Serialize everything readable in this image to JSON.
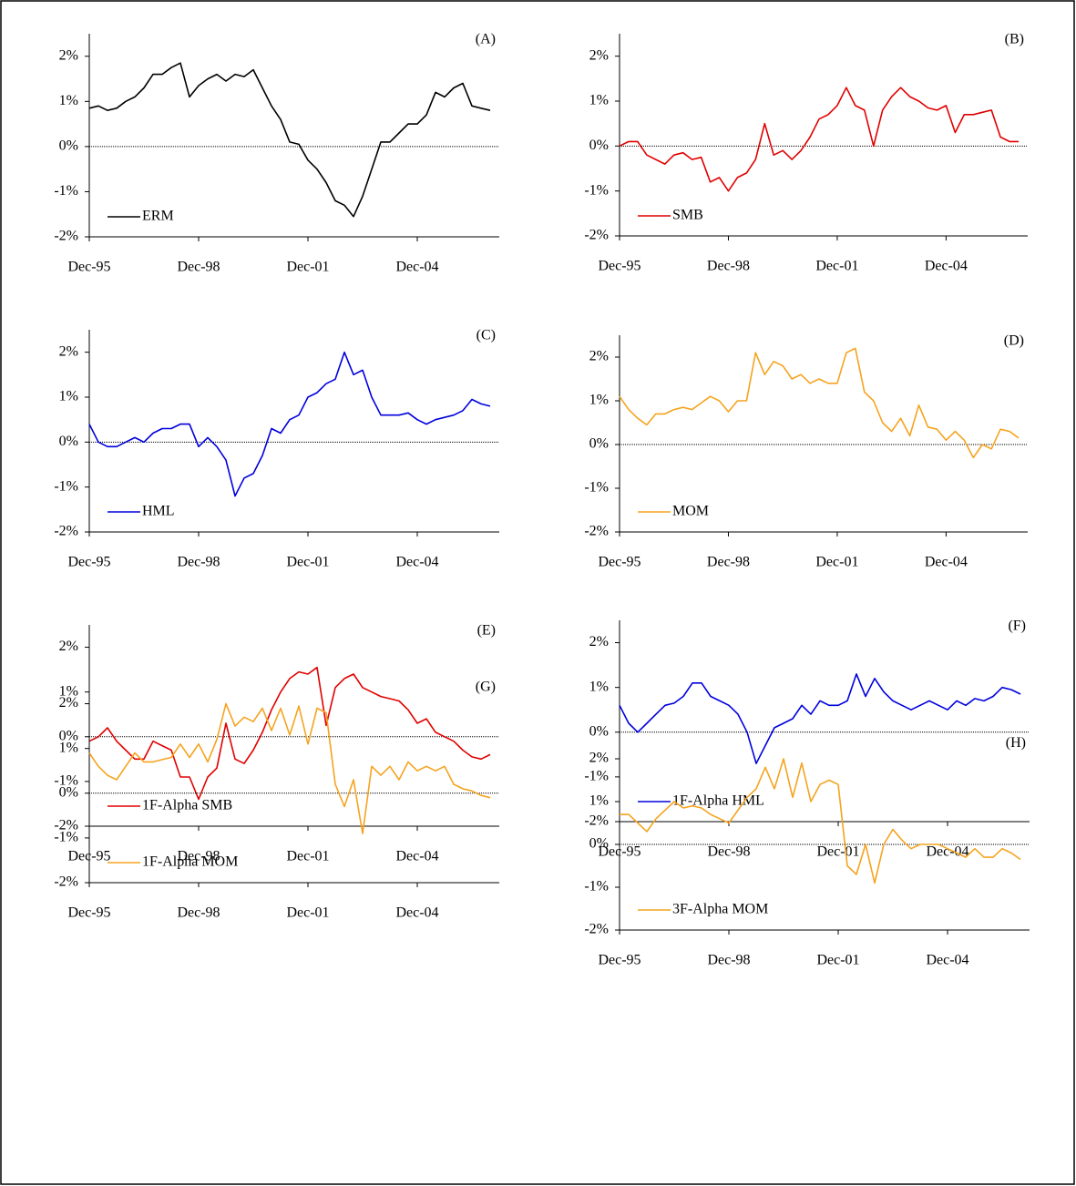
{
  "chart_data": [
    {
      "type": "line",
      "title": "(A)",
      "legend": "lower left",
      "ylim": [
        -2,
        2.5
      ],
      "yticks": [
        {
          "value": -2,
          "label": "-2%"
        },
        {
          "value": -1,
          "label": "-1%"
        },
        {
          "value": 0,
          "label": "0%"
        },
        {
          "value": 1,
          "label": "1%"
        },
        {
          "value": 2,
          "label": "2%"
        }
      ],
      "xticks": [
        "Dec-95",
        "Dec-98",
        "Dec-01",
        "Dec-04"
      ],
      "x": [
        "Dec-95",
        "Mar-96",
        "Jun-96",
        "Sep-96",
        "Dec-96",
        "Mar-97",
        "Jun-97",
        "Sep-97",
        "Dec-97",
        "Mar-98",
        "Jun-98",
        "Sep-98",
        "Dec-98",
        "Mar-99",
        "Jun-99",
        "Sep-99",
        "Dec-99",
        "Mar-00",
        "Jun-00",
        "Sep-00",
        "Dec-00",
        "Mar-01",
        "Jun-01",
        "Sep-01",
        "Dec-01",
        "Mar-02",
        "Jun-02",
        "Sep-02",
        "Dec-02",
        "Mar-03",
        "Jun-03",
        "Sep-03",
        "Dec-03",
        "Mar-04",
        "Jun-04",
        "Sep-04",
        "Dec-04",
        "Mar-05",
        "Jun-05",
        "Sep-05",
        "Dec-05",
        "Mar-06",
        "Jun-06",
        "Sep-06",
        "Dec-06"
      ],
      "series": [
        {
          "name": "ERM",
          "color": "#000000",
          "values": [
            0.85,
            0.9,
            0.8,
            0.85,
            1.0,
            1.1,
            1.3,
            1.6,
            1.6,
            1.75,
            1.85,
            1.1,
            1.35,
            1.5,
            1.6,
            1.45,
            1.6,
            1.55,
            1.7,
            1.3,
            0.9,
            0.6,
            0.1,
            0.05,
            -0.3,
            -0.5,
            -0.8,
            -1.2,
            -1.3,
            -1.55,
            -1.1,
            -0.5,
            0.1,
            0.1,
            0.3,
            0.5,
            0.5,
            0.7,
            1.2,
            1.1,
            1.3,
            1.4,
            0.9,
            0.85,
            0.8
          ]
        }
      ]
    },
    {
      "type": "line",
      "title": "(B)",
      "legend": "lower left",
      "ylim": [
        -2,
        2.5
      ],
      "yticks": [
        {
          "value": -2,
          "label": "-2%"
        },
        {
          "value": -1,
          "label": "-1%"
        },
        {
          "value": 0,
          "label": "0%"
        },
        {
          "value": 1,
          "label": "1%"
        },
        {
          "value": 2,
          "label": "2%"
        }
      ],
      "xticks": [
        "Dec-95",
        "Dec-98",
        "Dec-01",
        "Dec-04"
      ],
      "x": [
        "Dec-95",
        "Mar-96",
        "Jun-96",
        "Sep-96",
        "Dec-96",
        "Mar-97",
        "Jun-97",
        "Sep-97",
        "Dec-97",
        "Mar-98",
        "Jun-98",
        "Sep-98",
        "Dec-98",
        "Mar-99",
        "Jun-99",
        "Sep-99",
        "Dec-99",
        "Mar-00",
        "Jun-00",
        "Sep-00",
        "Dec-00",
        "Mar-01",
        "Jun-01",
        "Sep-01",
        "Dec-01",
        "Mar-02",
        "Jun-02",
        "Sep-02",
        "Dec-02",
        "Mar-03",
        "Jun-03",
        "Sep-03",
        "Dec-03",
        "Mar-04",
        "Jun-04",
        "Sep-04",
        "Dec-04",
        "Mar-05",
        "Jun-05",
        "Sep-05",
        "Dec-05",
        "Mar-06",
        "Jun-06",
        "Sep-06",
        "Dec-06"
      ],
      "series": [
        {
          "name": "SMB",
          "color": "#e00000",
          "values": [
            0.0,
            0.1,
            0.1,
            -0.2,
            -0.3,
            -0.4,
            -0.2,
            -0.15,
            -0.3,
            -0.25,
            -0.8,
            -0.7,
            -1.0,
            -0.7,
            -0.6,
            -0.3,
            0.5,
            -0.2,
            -0.1,
            -0.3,
            -0.1,
            0.2,
            0.6,
            0.7,
            0.9,
            1.3,
            0.9,
            0.8,
            0.0,
            0.8,
            1.1,
            1.3,
            1.1,
            1.0,
            0.85,
            0.8,
            0.9,
            0.3,
            0.7,
            0.7,
            0.75,
            0.8,
            0.2,
            0.1,
            0.1
          ]
        }
      ]
    },
    {
      "type": "line",
      "title": "(C)",
      "legend": "lower left",
      "ylim": [
        -2,
        2.5
      ],
      "yticks": [
        {
          "value": -2,
          "label": "-2%"
        },
        {
          "value": -1,
          "label": "-1%"
        },
        {
          "value": 0,
          "label": "0%"
        },
        {
          "value": 1,
          "label": "1%"
        },
        {
          "value": 2,
          "label": "2%"
        }
      ],
      "xticks": [
        "Dec-95",
        "Dec-98",
        "Dec-01",
        "Dec-04"
      ],
      "x": [
        "Dec-95",
        "Mar-96",
        "Jun-96",
        "Sep-96",
        "Dec-96",
        "Mar-97",
        "Jun-97",
        "Sep-97",
        "Dec-97",
        "Mar-98",
        "Jun-98",
        "Sep-98",
        "Dec-98",
        "Mar-99",
        "Jun-99",
        "Sep-99",
        "Dec-99",
        "Mar-00",
        "Jun-00",
        "Sep-00",
        "Dec-00",
        "Mar-01",
        "Jun-01",
        "Sep-01",
        "Dec-01",
        "Mar-02",
        "Jun-02",
        "Sep-02",
        "Dec-02",
        "Mar-03",
        "Jun-03",
        "Sep-03",
        "Dec-03",
        "Mar-04",
        "Jun-04",
        "Sep-04",
        "Dec-04",
        "Mar-05",
        "Jun-05",
        "Sep-05",
        "Dec-05",
        "Mar-06",
        "Jun-06",
        "Sep-06",
        "Dec-06"
      ],
      "series": [
        {
          "name": "HML",
          "color": "#0000dd",
          "values": [
            0.4,
            0.0,
            -0.1,
            -0.1,
            0.0,
            0.1,
            0.0,
            0.2,
            0.3,
            0.3,
            0.4,
            0.4,
            -0.1,
            0.1,
            -0.1,
            -0.4,
            -1.2,
            -0.8,
            -0.7,
            -0.3,
            0.3,
            0.2,
            0.5,
            0.6,
            1.0,
            1.1,
            1.3,
            1.4,
            2.0,
            1.5,
            1.6,
            1.0,
            0.6,
            0.6,
            0.6,
            0.65,
            0.5,
            0.4,
            0.5,
            0.55,
            0.6,
            0.7,
            0.95,
            0.85,
            0.8
          ]
        }
      ]
    },
    {
      "type": "line",
      "title": "(D)",
      "legend": "lower left",
      "ylim": [
        -2,
        2.5
      ],
      "yticks": [
        {
          "value": -2,
          "label": "-2%"
        },
        {
          "value": -1,
          "label": "-1%"
        },
        {
          "value": 0,
          "label": "0%"
        },
        {
          "value": 1,
          "label": "1%"
        },
        {
          "value": 2,
          "label": "2%"
        }
      ],
      "xticks": [
        "Dec-95",
        "Dec-98",
        "Dec-01",
        "Dec-04"
      ],
      "x": [
        "Dec-95",
        "Mar-96",
        "Jun-96",
        "Sep-96",
        "Dec-96",
        "Mar-97",
        "Jun-97",
        "Sep-97",
        "Dec-97",
        "Mar-98",
        "Jun-98",
        "Sep-98",
        "Dec-98",
        "Mar-99",
        "Jun-99",
        "Sep-99",
        "Dec-99",
        "Mar-00",
        "Jun-00",
        "Sep-00",
        "Dec-00",
        "Mar-01",
        "Jun-01",
        "Sep-01",
        "Dec-01",
        "Mar-02",
        "Jun-02",
        "Sep-02",
        "Dec-02",
        "Mar-03",
        "Jun-03",
        "Sep-03",
        "Dec-03",
        "Mar-04",
        "Jun-04",
        "Sep-04",
        "Dec-04",
        "Mar-05",
        "Jun-05",
        "Sep-05",
        "Dec-05",
        "Mar-06",
        "Jun-06",
        "Sep-06",
        "Dec-06"
      ],
      "series": [
        {
          "name": "MOM",
          "color": "#f5a31f",
          "values": [
            1.1,
            0.8,
            0.6,
            0.45,
            0.7,
            0.7,
            0.8,
            0.85,
            0.8,
            0.95,
            1.1,
            1.0,
            0.75,
            1.0,
            1.0,
            2.1,
            1.6,
            1.9,
            1.8,
            1.5,
            1.6,
            1.4,
            1.5,
            1.4,
            1.4,
            2.1,
            2.2,
            1.2,
            1.0,
            0.5,
            0.3,
            0.6,
            0.2,
            0.9,
            0.4,
            0.35,
            0.1,
            0.3,
            0.1,
            -0.3,
            0.0,
            -0.1,
            0.35,
            0.3,
            0.15
          ]
        }
      ]
    },
    {
      "type": "line",
      "title": "(E)",
      "legend": "lower left",
      "ylim": [
        -2,
        2.5
      ],
      "yticks": [
        {
          "value": -2,
          "label": "-2%"
        },
        {
          "value": -1,
          "label": "-1%"
        },
        {
          "value": 0,
          "label": "0%"
        },
        {
          "value": 1,
          "label": "1%"
        },
        {
          "value": 2,
          "label": "2%"
        }
      ],
      "xticks": [
        "Dec-95",
        "Dec-98",
        "Dec-01",
        "Dec-04"
      ],
      "x": [
        "Dec-95",
        "Mar-96",
        "Jun-96",
        "Sep-96",
        "Dec-96",
        "Mar-97",
        "Jun-97",
        "Sep-97",
        "Dec-97",
        "Mar-98",
        "Jun-98",
        "Sep-98",
        "Dec-98",
        "Mar-99",
        "Jun-99",
        "Sep-99",
        "Dec-99",
        "Mar-00",
        "Jun-00",
        "Sep-00",
        "Dec-00",
        "Mar-01",
        "Jun-01",
        "Sep-01",
        "Dec-01",
        "Mar-02",
        "Jun-02",
        "Sep-02",
        "Dec-02",
        "Mar-03",
        "Jun-03",
        "Sep-03",
        "Dec-03",
        "Mar-04",
        "Jun-04",
        "Sep-04",
        "Dec-04",
        "Mar-05",
        "Jun-05",
        "Sep-05",
        "Dec-05",
        "Mar-06",
        "Jun-06",
        "Sep-06",
        "Dec-06"
      ],
      "series": [
        {
          "name": "1F-Alpha SMB",
          "color": "#e00000",
          "values": [
            -0.1,
            0.0,
            0.2,
            -0.1,
            -0.3,
            -0.5,
            -0.5,
            -0.1,
            -0.2,
            -0.3,
            -0.9,
            -0.9,
            -1.4,
            -0.9,
            -0.7,
            0.3,
            -0.5,
            -0.6,
            -0.3,
            0.1,
            0.6,
            1.0,
            1.3,
            1.45,
            1.4,
            1.55,
            0.25,
            1.1,
            1.3,
            1.4,
            1.1,
            1.0,
            0.9,
            0.85,
            0.8,
            0.6,
            0.3,
            0.4,
            0.1,
            0.0,
            -0.1,
            -0.3,
            -0.45,
            -0.5,
            -0.4
          ]
        }
      ]
    },
    {
      "type": "line",
      "title": "(F)",
      "legend": "lower left",
      "ylim": [
        -2,
        2.5
      ],
      "yticks": [
        {
          "value": -2,
          "label": "-2%"
        },
        {
          "value": -1,
          "label": "-1%"
        },
        {
          "value": 0,
          "label": "0%"
        },
        {
          "value": 1,
          "label": "1%"
        },
        {
          "value": 2,
          "label": "2%"
        }
      ],
      "xticks": [
        "Dec-95",
        "Dec-98",
        "Dec-01",
        "Dec-04"
      ],
      "x": [
        "Dec-95",
        "Mar-96",
        "Jun-96",
        "Sep-96",
        "Dec-96",
        "Mar-97",
        "Jun-97",
        "Sep-97",
        "Dec-97",
        "Mar-98",
        "Jun-98",
        "Sep-98",
        "Dec-98",
        "Mar-99",
        "Jun-99",
        "Sep-99",
        "Dec-99",
        "Mar-00",
        "Jun-00",
        "Sep-00",
        "Dec-00",
        "Mar-01",
        "Jun-01",
        "Sep-01",
        "Dec-01",
        "Mar-02",
        "Jun-02",
        "Sep-02",
        "Dec-02",
        "Mar-03",
        "Jun-03",
        "Sep-03",
        "Dec-03",
        "Mar-04",
        "Jun-04",
        "Sep-04",
        "Dec-04",
        "Mar-05",
        "Jun-05",
        "Sep-05",
        "Dec-05",
        "Mar-06",
        "Jun-06",
        "Sep-06",
        "Dec-06"
      ],
      "series": [
        {
          "name": "1F-Alpha HML",
          "color": "#0000dd",
          "values": [
            0.6,
            0.2,
            0.0,
            0.2,
            0.4,
            0.6,
            0.65,
            0.8,
            1.1,
            1.1,
            0.8,
            0.7,
            0.6,
            0.4,
            0.0,
            -0.7,
            -0.3,
            0.1,
            0.2,
            0.3,
            0.6,
            0.4,
            0.7,
            0.6,
            0.6,
            0.7,
            1.3,
            0.8,
            1.2,
            0.9,
            0.7,
            0.6,
            0.5,
            0.6,
            0.7,
            0.6,
            0.5,
            0.7,
            0.6,
            0.75,
            0.7,
            0.8,
            1.0,
            0.95,
            0.85
          ]
        }
      ]
    },
    {
      "type": "line",
      "title": "(G)",
      "legend": "lower left",
      "ylim": [
        -2,
        2.5
      ],
      "yticks": [
        {
          "value": -2,
          "label": "-2%"
        },
        {
          "value": -1,
          "label": "-1%"
        },
        {
          "value": 0,
          "label": "0%"
        },
        {
          "value": 1,
          "label": "1%"
        },
        {
          "value": 2,
          "label": "2%"
        }
      ],
      "xticks": [
        "Dec-95",
        "Dec-98",
        "Dec-01",
        "Dec-04"
      ],
      "x": [
        "Dec-95",
        "Mar-96",
        "Jun-96",
        "Sep-96",
        "Dec-96",
        "Mar-97",
        "Jun-97",
        "Sep-97",
        "Dec-97",
        "Mar-98",
        "Jun-98",
        "Sep-98",
        "Dec-98",
        "Mar-99",
        "Jun-99",
        "Sep-99",
        "Dec-99",
        "Mar-00",
        "Jun-00",
        "Sep-00",
        "Dec-00",
        "Mar-01",
        "Jun-01",
        "Sep-01",
        "Dec-01",
        "Mar-02",
        "Jun-02",
        "Sep-02",
        "Dec-02",
        "Mar-03",
        "Jun-03",
        "Sep-03",
        "Dec-03",
        "Mar-04",
        "Jun-04",
        "Sep-04",
        "Dec-04",
        "Mar-05",
        "Jun-05",
        "Sep-05",
        "Dec-05",
        "Mar-06",
        "Jun-06",
        "Sep-06",
        "Dec-06"
      ],
      "series": [
        {
          "name": "1F-Alpha MOM",
          "color": "#f5a31f",
          "values": [
            0.9,
            0.6,
            0.4,
            0.3,
            0.6,
            0.9,
            0.7,
            0.7,
            0.75,
            0.8,
            1.1,
            0.8,
            1.1,
            0.7,
            1.2,
            2.0,
            1.5,
            1.7,
            1.6,
            1.9,
            1.4,
            1.9,
            1.3,
            1.95,
            1.1,
            1.9,
            1.8,
            0.2,
            -0.3,
            0.3,
            -0.9,
            0.6,
            0.4,
            0.6,
            0.3,
            0.7,
            0.5,
            0.6,
            0.5,
            0.6,
            0.2,
            0.1,
            0.05,
            -0.05,
            -0.1
          ]
        }
      ]
    },
    {
      "type": "line",
      "title": "(H)",
      "legend": "lower left",
      "ylim": [
        -2,
        2.5
      ],
      "yticks": [
        {
          "value": -2,
          "label": "-2%"
        },
        {
          "value": -1,
          "label": "-1%"
        },
        {
          "value": 0,
          "label": "0%"
        },
        {
          "value": 1,
          "label": "1%"
        },
        {
          "value": 2,
          "label": "2%"
        }
      ],
      "xticks": [
        "Dec-95",
        "Dec-98",
        "Dec-01",
        "Dec-04"
      ],
      "x": [
        "Dec-95",
        "Mar-96",
        "Jun-96",
        "Sep-96",
        "Dec-96",
        "Mar-97",
        "Jun-97",
        "Sep-97",
        "Dec-97",
        "Mar-98",
        "Jun-98",
        "Sep-98",
        "Dec-98",
        "Mar-99",
        "Jun-99",
        "Sep-99",
        "Dec-99",
        "Mar-00",
        "Jun-00",
        "Sep-00",
        "Dec-00",
        "Mar-01",
        "Jun-01",
        "Sep-01",
        "Dec-01",
        "Mar-02",
        "Jun-02",
        "Sep-02",
        "Dec-02",
        "Mar-03",
        "Jun-03",
        "Sep-03",
        "Dec-03",
        "Mar-04",
        "Jun-04",
        "Sep-04",
        "Dec-04",
        "Mar-05",
        "Jun-05",
        "Sep-05",
        "Dec-05",
        "Mar-06",
        "Jun-06",
        "Sep-06",
        "Dec-06"
      ],
      "series": [
        {
          "name": "3F-Alpha MOM",
          "color": "#f5a31f",
          "values": [
            0.7,
            0.7,
            0.5,
            0.3,
            0.6,
            0.8,
            1.0,
            0.85,
            0.9,
            0.85,
            0.7,
            0.6,
            0.5,
            0.8,
            1.1,
            1.3,
            1.8,
            1.3,
            2.0,
            1.1,
            1.9,
            1.0,
            1.4,
            1.5,
            1.4,
            -0.5,
            -0.7,
            0.0,
            -0.9,
            0.0,
            0.35,
            0.1,
            -0.1,
            0.0,
            0.0,
            0.0,
            -0.1,
            -0.2,
            -0.3,
            -0.1,
            -0.3,
            -0.3,
            -0.1,
            -0.2,
            -0.35
          ]
        }
      ]
    }
  ]
}
